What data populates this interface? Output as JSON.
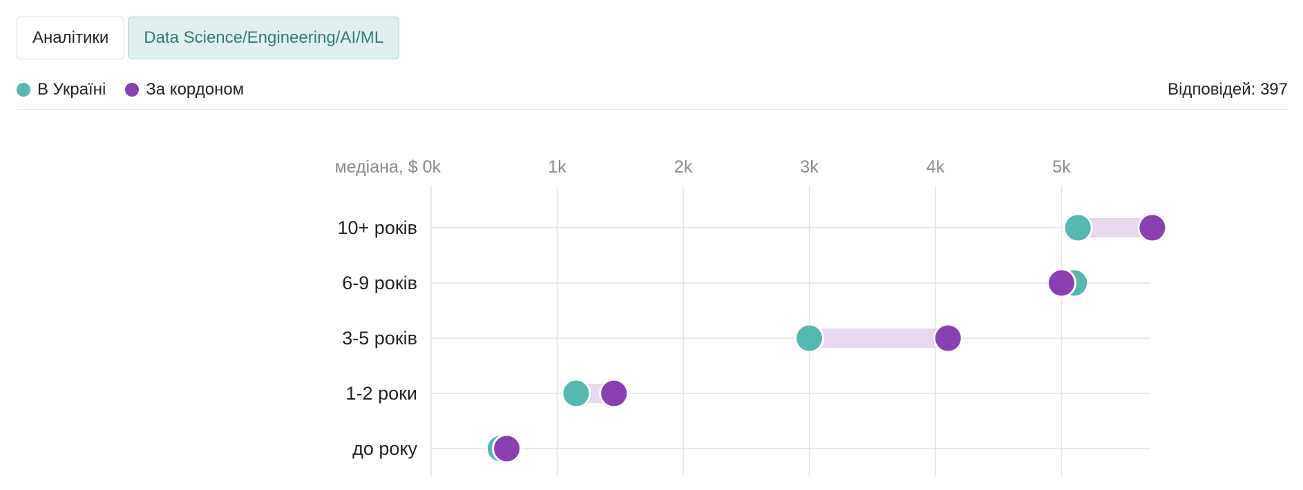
{
  "tabs": [
    {
      "label": "Аналітики",
      "active": false
    },
    {
      "label": "Data Science/Engineering/AI/ML",
      "active": true
    }
  ],
  "legend": [
    {
      "label": "В Україні",
      "color": "#55b8b0"
    },
    {
      "label": "За кордоном",
      "color": "#8a3fb5"
    }
  ],
  "responses_text": "Відповідей: 397",
  "chart_data": {
    "type": "dumbbell",
    "axis_prefix": "медіана, $",
    "x_ticks": [
      "0k",
      "1k",
      "2k",
      "3k",
      "4k",
      "5k"
    ],
    "xlim": [
      0,
      5.8
    ],
    "categories": [
      "10+ років",
      "6-9 років",
      "3-5 років",
      "1-2 роки",
      "до року"
    ],
    "series": [
      {
        "name": "В Україні",
        "color": "#55b8b0",
        "values": [
          5.13,
          5.1,
          3.0,
          1.15,
          0.55
        ]
      },
      {
        "name": "За кордоном",
        "color": "#8a3fb5",
        "values": [
          5.72,
          5.0,
          4.1,
          1.45,
          0.6
        ]
      }
    ],
    "range_bar_color": "#e7d8ee",
    "grid": true
  }
}
